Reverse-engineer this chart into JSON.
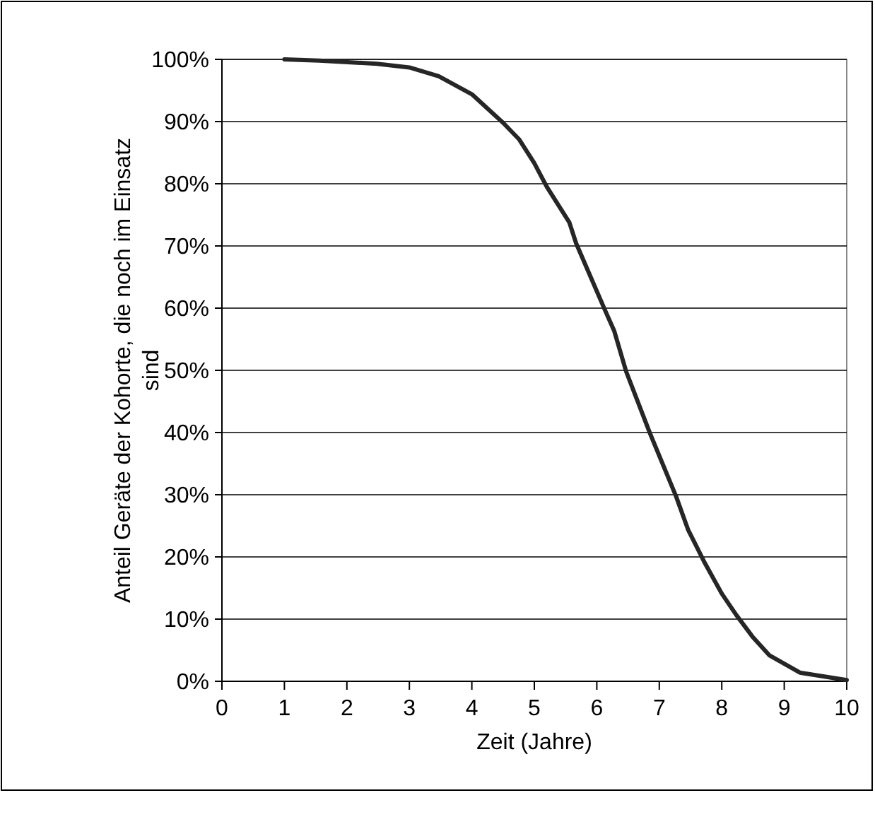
{
  "chart_data": {
    "type": "line",
    "xlabel": "Zeit (Jahre)",
    "ylabel": "Anteil Geräte der Kohorte, die noch im Einsatz sind",
    "series": [
      {
        "color": "#262626",
        "x": [
          1,
          1.56,
          2.48,
          3,
          3.47,
          4,
          4.5,
          4.76,
          5,
          5.2,
          5.56,
          5.67,
          6.13,
          6.28,
          6.47,
          6.85,
          7.27,
          7.46,
          7.73,
          8,
          8.23,
          8.49,
          8.76,
          9.25,
          10
        ],
        "values": [
          100,
          99.8,
          99.3,
          98.7,
          97.3,
          94.4,
          89.8,
          87.1,
          83.3,
          79.5,
          73.8,
          70.4,
          59.7,
          56.3,
          49.8,
          39.9,
          29.7,
          24.4,
          19,
          14.1,
          10.7,
          7.2,
          4.2,
          1.4,
          0.2
        ]
      }
    ],
    "xlim": [
      0,
      10
    ],
    "xticks": [
      0,
      1,
      2,
      3,
      4,
      5,
      6,
      7,
      8,
      9,
      10
    ],
    "ylim": [
      0,
      100
    ],
    "yticks": [
      {
        "value": 0,
        "label": "0%"
      },
      {
        "value": 10,
        "label": "10%"
      },
      {
        "value": 20,
        "label": "20%"
      },
      {
        "value": 30,
        "label": "30%"
      },
      {
        "value": 40,
        "label": "40%"
      },
      {
        "value": 50,
        "label": "50%"
      },
      {
        "value": 60,
        "label": "60%"
      },
      {
        "value": 70,
        "label": "70%"
      },
      {
        "value": 80,
        "label": "80%"
      },
      {
        "value": 90,
        "label": "90%"
      },
      {
        "value": 100,
        "label": "100%"
      }
    ],
    "grid": "y",
    "marker": "none",
    "line_style": "solid"
  }
}
